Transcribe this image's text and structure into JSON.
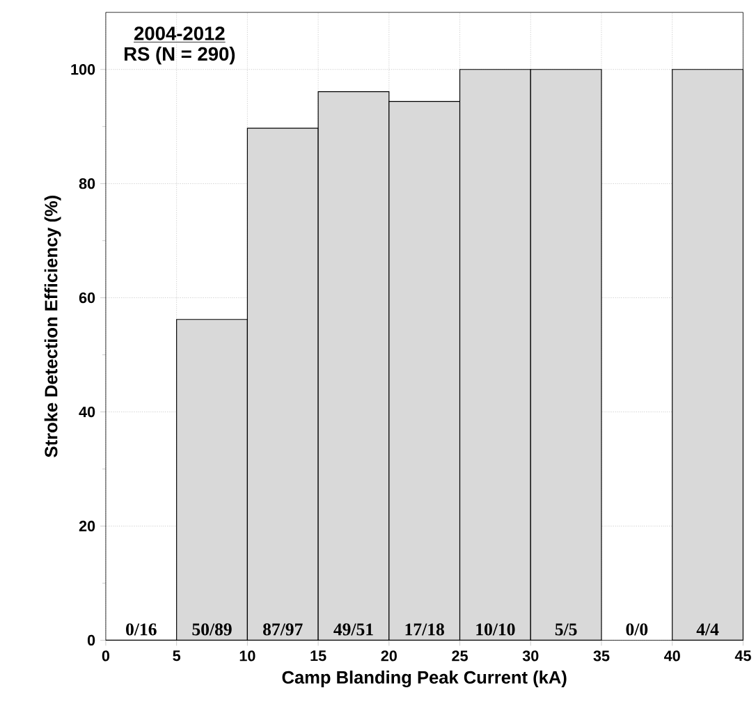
{
  "chart_data": {
    "type": "histogram",
    "title": "2004-2012",
    "subtitle": "RS (N = 290)",
    "xlabel": "Camp Blanding Peak Current (kA)",
    "ylabel": "Stroke Detection Efficiency (%)",
    "bins": [
      0,
      5,
      10,
      15,
      20,
      25,
      30,
      35,
      40,
      45
    ],
    "values": [
      0,
      56.2,
      89.7,
      96.1,
      94.4,
      100,
      100,
      null,
      100
    ],
    "annotations": [
      {
        "text": "0/16",
        "x": 2.5,
        "y": 0
      },
      {
        "text": "50/89",
        "x": 7.5,
        "y": 0
      },
      {
        "text": "87/97",
        "x": 12.5,
        "y": 0
      },
      {
        "text": "49/51",
        "x": 17.5,
        "y": 0
      },
      {
        "text": "17/18",
        "x": 22.5,
        "y": 0
      },
      {
        "text": "10/10",
        "x": 27.5,
        "y": 0
      },
      {
        "text": "5/5",
        "x": 32.5,
        "y": 0
      },
      "0/0",
      {
        "text": "4/4",
        "x": 42.5,
        "y": 0
      }
    ],
    "color": "#d9d9d9",
    "xlim": [
      0,
      45
    ],
    "ylim": [
      0,
      110
    ],
    "xticks": [
      0,
      5,
      10,
      15,
      20,
      25,
      30,
      35,
      40,
      45
    ],
    "yticks": [
      0,
      20,
      40,
      60,
      80,
      100
    ],
    "grid": true
  }
}
